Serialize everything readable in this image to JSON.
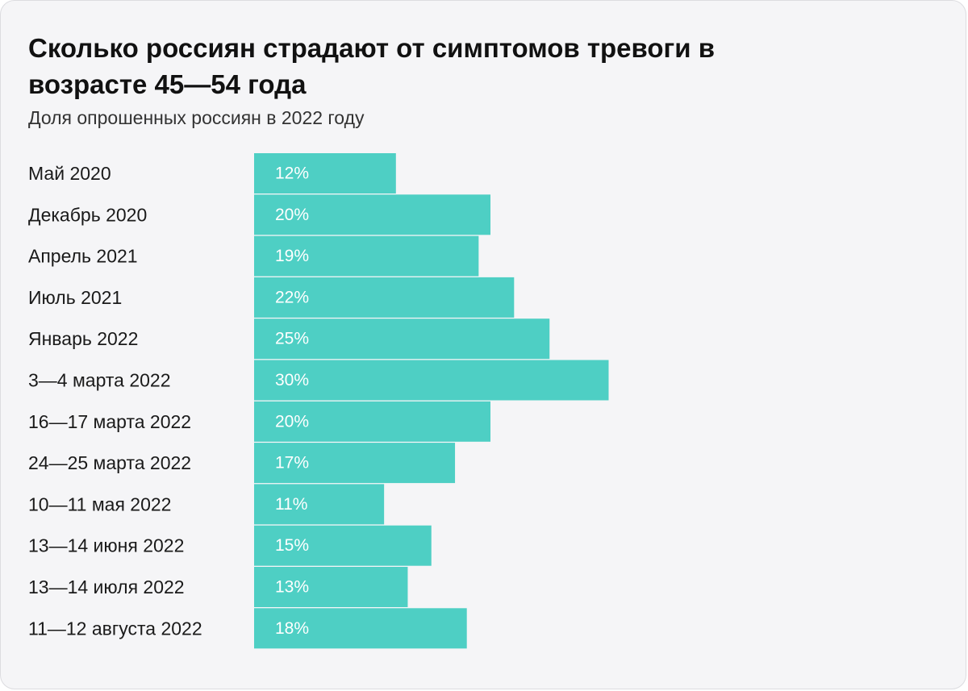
{
  "colors": {
    "bar": "#4ecfc4",
    "background": "#f5f5f7",
    "label": "#1a1a1a",
    "value_label": "#ffffff"
  },
  "chart_data": {
    "type": "bar",
    "orientation": "horizontal",
    "title": "Сколько россиян страдают от симптомов тревоги в возрасте 45—54 года",
    "subtitle": "Доля опрошенных россиян в 2022 году",
    "categories": [
      "Май 2020",
      "Декабрь 2020",
      "Апрель 2021",
      "Июль 2021",
      "Январь 2022",
      "3—4 марта 2022",
      "16—17 марта 2022",
      "24—25 марта 2022",
      "10—11 мая 2022",
      "13—14 июня 2022",
      "13—14 июля 2022",
      "11—12 августа 2022"
    ],
    "values": [
      12,
      20,
      19,
      22,
      25,
      30,
      20,
      17,
      11,
      15,
      13,
      18
    ],
    "value_labels": [
      "12%",
      "20%",
      "19%",
      "22%",
      "25%",
      "30%",
      "20%",
      "17%",
      "11%",
      "15%",
      "13%",
      "18%"
    ],
    "unit": "%",
    "grid": false,
    "legend": "none"
  }
}
